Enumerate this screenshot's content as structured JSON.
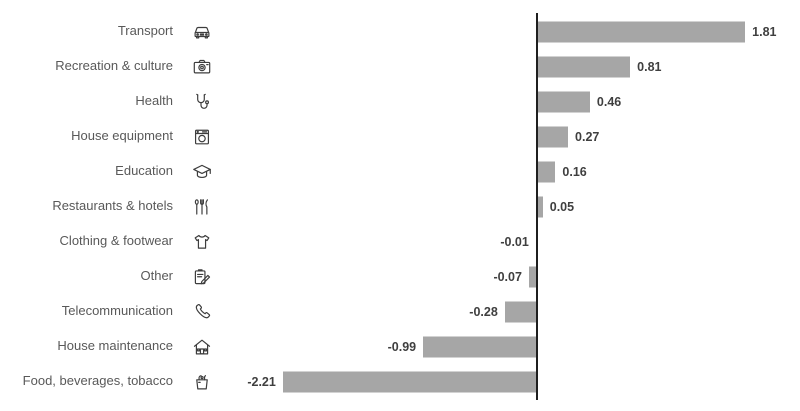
{
  "chart_data": {
    "type": "bar",
    "orientation": "horizontal",
    "title": "",
    "xlabel": "",
    "ylabel": "",
    "categories": [
      "Transport",
      "Recreation & culture",
      "Health",
      "House equipment",
      "Education",
      "Restaurants & hotels",
      "Clothing & footwear",
      "Other",
      "Telecommunication",
      "House maintenance",
      "Food, beverages, tobacco"
    ],
    "values": [
      1.81,
      0.81,
      0.46,
      0.27,
      0.16,
      0.05,
      -0.01,
      -0.07,
      -0.28,
      -0.99,
      -2.21
    ],
    "value_labels": [
      "1.81",
      "0.81",
      "0.46",
      "0.27",
      "0.16",
      "0.05",
      "-0.01",
      "-0.07",
      "-0.28",
      "-0.99",
      "-2.21"
    ],
    "icons": [
      "car-icon",
      "camera-icon",
      "stethoscope-icon",
      "washing-machine-icon",
      "graduation-cap-icon",
      "cutlery-icon",
      "tshirt-icon",
      "notepad-pencil-icon",
      "phone-icon",
      "house-icon",
      "grocery-bag-icon"
    ],
    "xlim": [
      -2.5,
      2.3
    ],
    "grid": false,
    "legend": false,
    "data_labels": true,
    "colors": {
      "bar": "#a6a6a6",
      "axis": "#1f1f1f",
      "category_label": "#595959",
      "value_label": "#3f3f3f",
      "icon": "#3d3d3d",
      "background": "#ffffff"
    }
  }
}
